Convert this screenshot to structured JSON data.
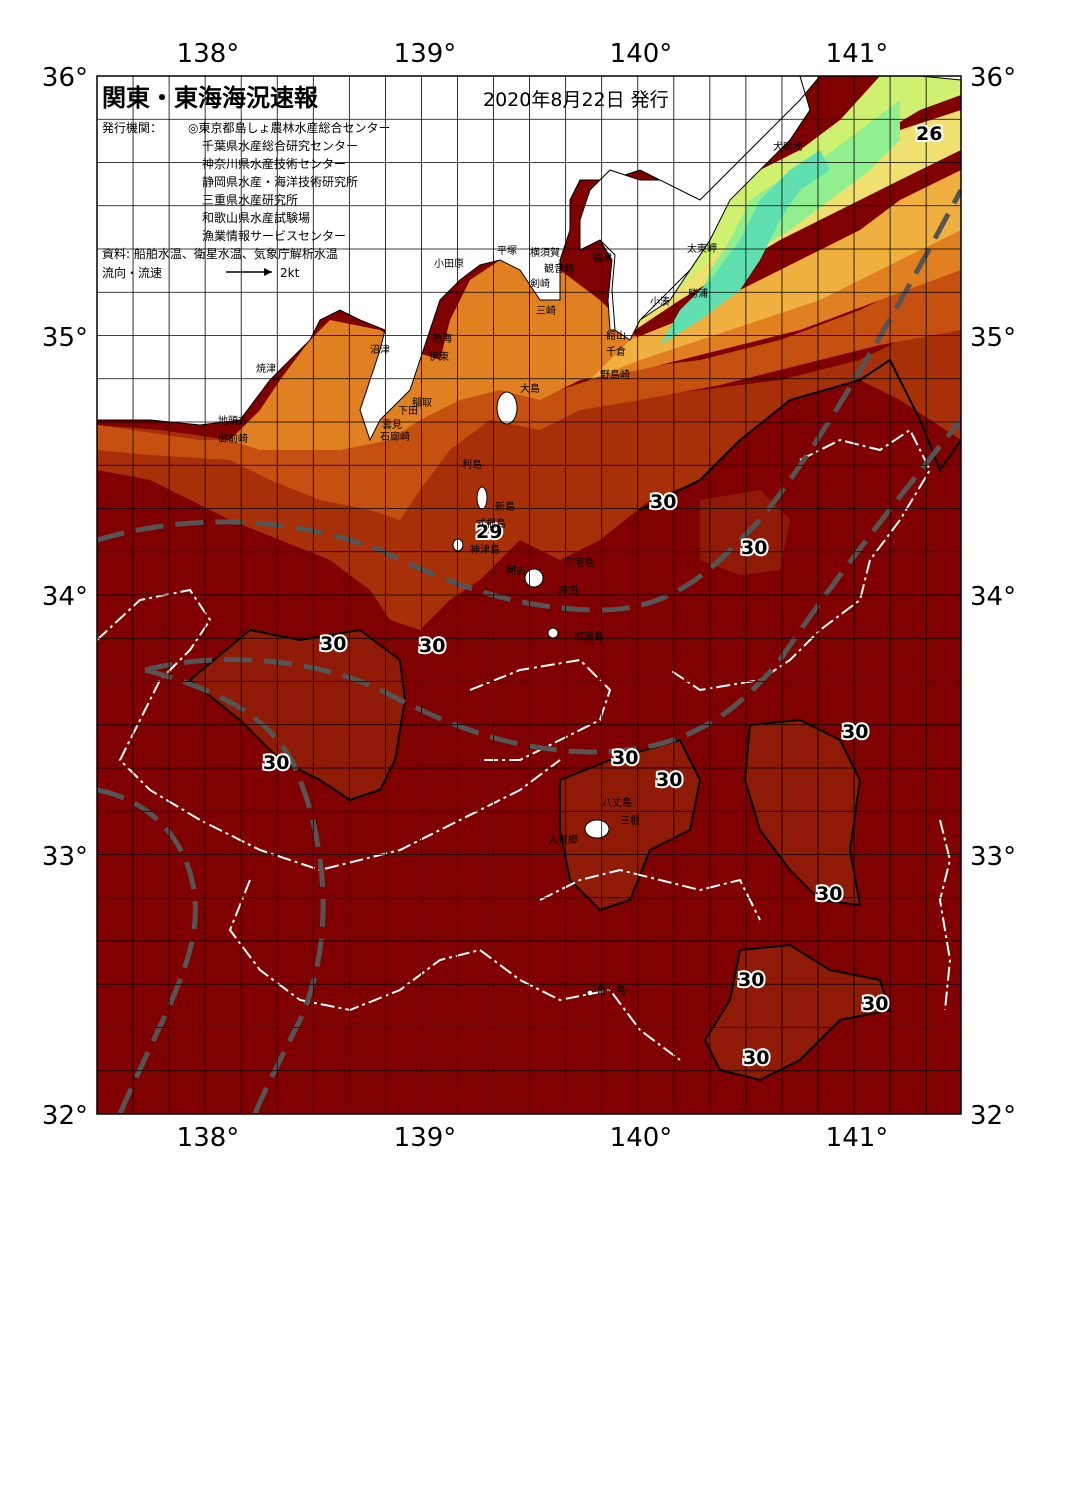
{
  "title": "関東・東海海況速報",
  "issue_date": "2020年8月22日 発行",
  "publisher_label": "発行機関：",
  "publishers": [
    "◎東京都島しょ農林水産総合センター",
    "千葉県水産総合研究センター",
    "神奈川県水産技術センター",
    "静岡県水産・海洋技術研究所",
    "三重県水産研究所",
    "和歌山県水産試験場",
    "漁業情報サービスセンター"
  ],
  "sources": "資料: 船舶水温、衛星水温、気象庁解析水温",
  "current_legend": {
    "label": "流向・流速",
    "scale": "2kt"
  },
  "lon_labels": [
    "138°",
    "139°",
    "140°",
    "141°"
  ],
  "lat_labels": [
    "36°",
    "35°",
    "34°",
    "33°",
    "32°"
  ],
  "temperature_labels": [
    "26",
    "29",
    "30",
    "30",
    "30",
    "30",
    "30",
    "30",
    "30",
    "30",
    "30",
    "30",
    "30",
    "30"
  ],
  "place_names": [
    "犬吠埼",
    "太東岬",
    "勝浦",
    "小湊",
    "館山",
    "千倉",
    "野島崎",
    "富津",
    "横須賀",
    "観音崎",
    "剣崎",
    "三崎",
    "平塚",
    "小田原",
    "熱海",
    "伊東",
    "稲取",
    "下田",
    "石廊崎",
    "雲見",
    "沼津",
    "焼津",
    "地頭方",
    "御前崎",
    "大島",
    "利島",
    "新島",
    "式根島",
    "神津島",
    "三宅島",
    "御蔵島",
    "坪田",
    "八丈島",
    "三根",
    "大賀郷",
    "青ヶ島",
    "阿古"
  ],
  "colors": {
    "deep_sea_30": "#800000",
    "warm_patch_30": "#8f1a05",
    "sea_29": "#a83008",
    "sea_28": "#c55010",
    "sea_27": "#e08020",
    "sea_26": "#f0b040",
    "sea_25": "#f0e070",
    "sea_24": "#d0f070",
    "sea_23": "#90f090",
    "sea_22": "#60e0b0",
    "kuroshio_axis": "#555555",
    "land": "#ffffff"
  }
}
